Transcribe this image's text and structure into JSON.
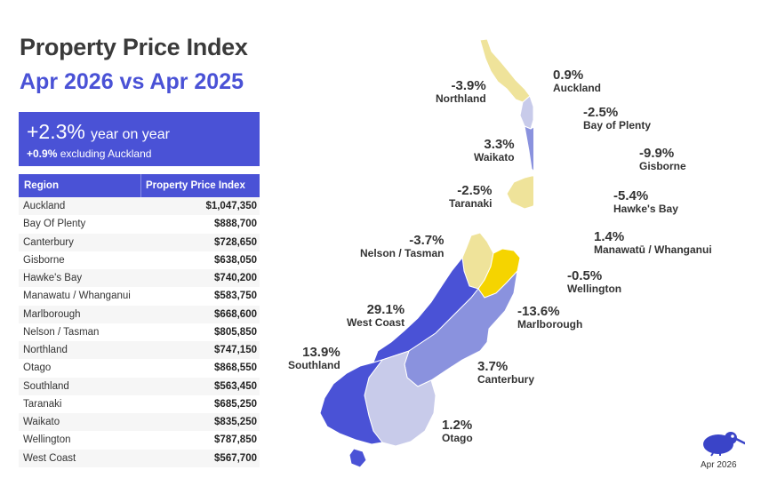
{
  "header": {
    "title": "Property Price Index",
    "subtitle": "Apr 2026 vs Apr 2025"
  },
  "kpi": {
    "main_value": "+2.3%",
    "main_text": "year on year",
    "sub_value": "+0.9%",
    "sub_text": "excluding Auckland"
  },
  "table": {
    "headers": [
      "Region",
      "Property Price Index"
    ],
    "rows": [
      {
        "region": "Auckland",
        "value": "$1,047,350"
      },
      {
        "region": "Bay Of Plenty",
        "value": "$888,700"
      },
      {
        "region": "Canterbury",
        "value": "$728,650"
      },
      {
        "region": "Gisborne",
        "value": "$638,050"
      },
      {
        "region": "Hawke's Bay",
        "value": "$740,200"
      },
      {
        "region": "Manawatu / Whanganui",
        "value": "$583,750"
      },
      {
        "region": "Marlborough",
        "value": "$668,600"
      },
      {
        "region": "Nelson / Tasman",
        "value": "$805,850"
      },
      {
        "region": "Northland",
        "value": "$747,150"
      },
      {
        "region": "Otago",
        "value": "$868,550"
      },
      {
        "region": "Southland",
        "value": "$563,450"
      },
      {
        "region": "Taranaki",
        "value": "$685,250"
      },
      {
        "region": "Waikato",
        "value": "$835,250"
      },
      {
        "region": "Wellington",
        "value": "$787,850"
      },
      {
        "region": "West Coast",
        "value": "$567,700"
      }
    ]
  },
  "map": {
    "labels": {
      "northland": {
        "pct": "-3.9%",
        "name": "Northland"
      },
      "auckland": {
        "pct": "0.9%",
        "name": "Auckland"
      },
      "bay_of_plenty": {
        "pct": "-2.5%",
        "name": "Bay of Plenty"
      },
      "waikato": {
        "pct": "3.3%",
        "name": "Waikato"
      },
      "gisborne": {
        "pct": "-9.9%",
        "name": "Gisborne"
      },
      "taranaki": {
        "pct": "-2.5%",
        "name": "Taranaki"
      },
      "hawkes_bay": {
        "pct": "-5.4%",
        "name": "Hawke's Bay"
      },
      "manawatu": {
        "pct": "1.4%",
        "name": "Manawatū / Whanganui"
      },
      "nelson": {
        "pct": "-3.7%",
        "name": "Nelson / Tasman"
      },
      "wellington": {
        "pct": "-0.5%",
        "name": "Wellington"
      },
      "west_coast": {
        "pct": "29.1%",
        "name": "West Coast"
      },
      "marlborough": {
        "pct": "-13.6%",
        "name": "Marlborough"
      },
      "southland": {
        "pct": "13.9%",
        "name": "Southland"
      },
      "canterbury": {
        "pct": "3.7%",
        "name": "Canterbury"
      },
      "otago": {
        "pct": "1.2%",
        "name": "Otago"
      }
    },
    "colors": {
      "strong_up": "#4a52d6",
      "up": "#8a92de",
      "slight_up": "#c8cbea",
      "neutral": "#e6e3d6",
      "slight_down": "#efe39a",
      "down": "#f6dc3e",
      "strong_down": "#f5d400"
    }
  },
  "footer": {
    "date": "Apr 2026",
    "logo_icon": "kiwi-bird-icon"
  }
}
